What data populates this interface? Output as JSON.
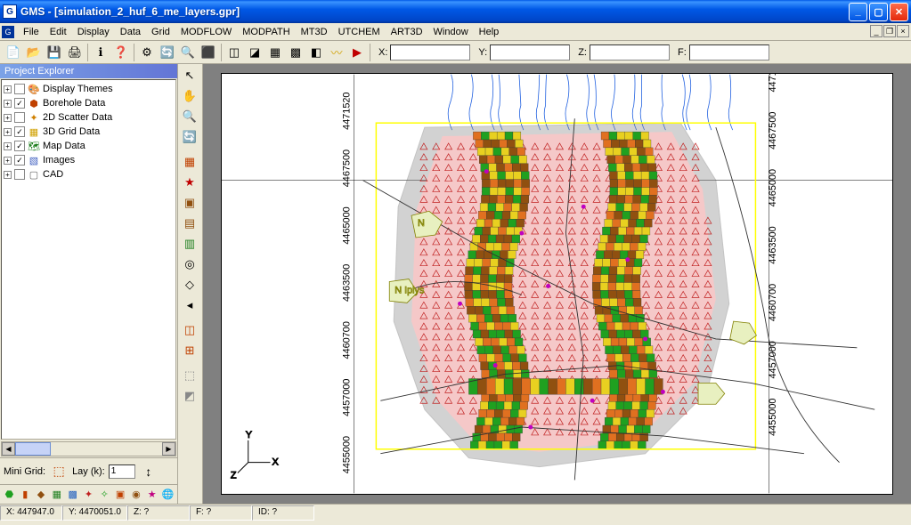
{
  "window": {
    "title": "GMS - [simulation_2_huf_6_me_layers.gpr]",
    "app_short": "G"
  },
  "menu": {
    "items": [
      "File",
      "Edit",
      "Display",
      "Data",
      "Grid",
      "MODFLOW",
      "MODPATH",
      "MT3D",
      "UTCHEM",
      "ART3D",
      "Window",
      "Help"
    ]
  },
  "toolbar_top": {
    "coord_labels": [
      "X:",
      "Y:",
      "Z:",
      "F:"
    ]
  },
  "explorer": {
    "title": "Project Explorer",
    "nodes": [
      {
        "expander": "+",
        "checked": " ",
        "icon": "🎨",
        "icon_color": "#888",
        "label": "Display Themes"
      },
      {
        "expander": "+",
        "checked": "✓",
        "icon": "⬢",
        "icon_color": "#c04000",
        "label": "Borehole Data"
      },
      {
        "expander": "+",
        "checked": " ",
        "icon": "✦",
        "icon_color": "#d08000",
        "label": "2D Scatter Data"
      },
      {
        "expander": "+",
        "checked": "✓",
        "icon": "▦",
        "icon_color": "#d0a000",
        "label": "3D Grid Data"
      },
      {
        "expander": "+",
        "checked": "✓",
        "icon": "🗺",
        "icon_color": "#208020",
        "label": "Map Data"
      },
      {
        "expander": "+",
        "checked": "✓",
        "icon": "▧",
        "icon_color": "#4060c0",
        "label": "Images"
      },
      {
        "expander": "+",
        "checked": " ",
        "icon": "▢",
        "icon_color": "#666",
        "label": "CAD"
      }
    ]
  },
  "minigrid": {
    "label": "Mini Grid:",
    "lay_label": "Lay (k):",
    "lay_value": "1"
  },
  "status": {
    "x": "X: 447947.0",
    "y": "Y: 4470051.0",
    "z": "Z: ?",
    "f": "F: ?",
    "id": "ID: ?"
  },
  "map": {
    "bbox_color": "#ffff00",
    "axis_ticks_y": [
      "4471520",
      "4467500",
      "4465000",
      "4463500",
      "4460700",
      "4457000",
      "4455000"
    ],
    "compass": {
      "y_label": "Y",
      "x_label": "X",
      "z_label": "Z"
    },
    "colors": {
      "river": "#2060e0",
      "grid_yellow": "#e8d020",
      "grid_green": "#20a020",
      "grid_orange": "#e07020",
      "grid_brown": "#905010",
      "triangle": "#c02020",
      "boundary": "#808080",
      "roads": "#303030",
      "wells": "#c000c0",
      "bg_pink": "#f5c8c8"
    }
  }
}
